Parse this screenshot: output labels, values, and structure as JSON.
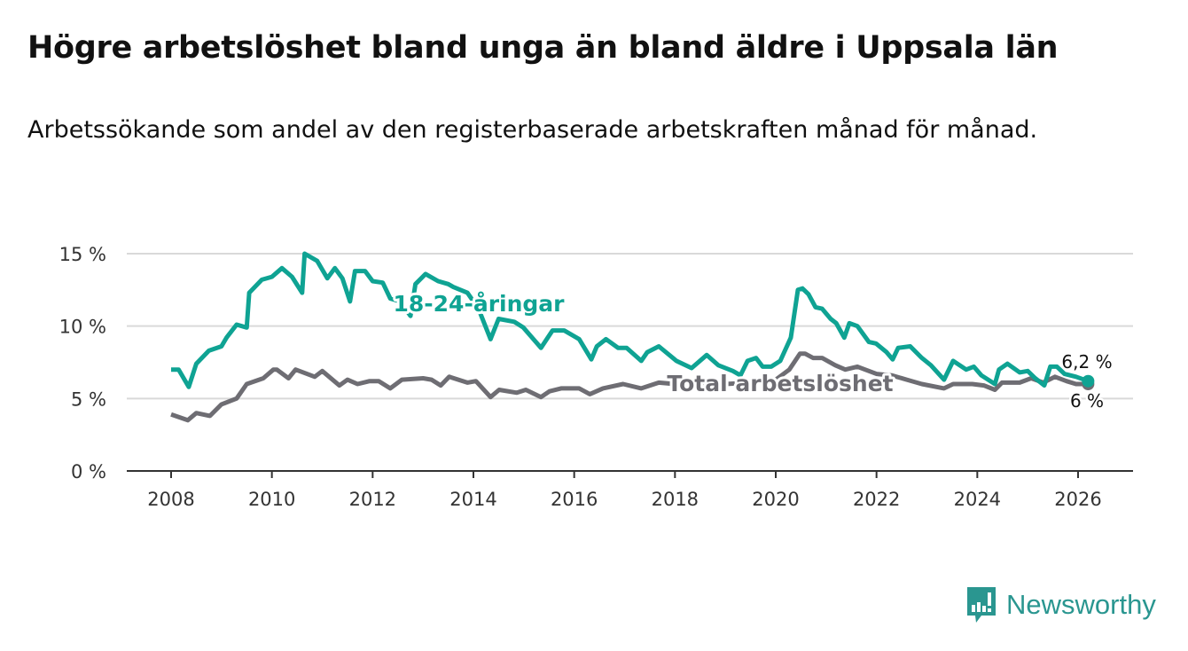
{
  "title": "Högre arbetslöshet bland unga än bland äldre i Uppsala län",
  "subtitle": "Arbetssökande som andel av den registerbaserade arbetskraften månad för månad.",
  "brand": {
    "name": "Newsworthy"
  },
  "chart_data": {
    "type": "line",
    "title": "Högre arbetslöshet bland unga än bland äldre i Uppsala län",
    "xlabel": "",
    "ylabel": "",
    "xlim": [
      2007.75,
      2027.0
    ],
    "ylim": [
      0,
      15
    ],
    "xticks": [
      2008,
      2010,
      2012,
      2014,
      2016,
      2018,
      2020,
      2022,
      2024,
      2026
    ],
    "xtick_labels": [
      "2008",
      "2010",
      "2012",
      "2014",
      "2016",
      "2018",
      "2020",
      "2022",
      "2024",
      "2026"
    ],
    "yticks": [
      0,
      5,
      10,
      15
    ],
    "ytick_labels": [
      "0 %",
      "5 %",
      "10 %",
      "15 %"
    ],
    "grid": true,
    "series": [
      {
        "name": "18-24-åringar",
        "label": "18-24-åringar",
        "color": "#0fa393",
        "end_label": "6,2 %",
        "x": [
          2008,
          2008.15,
          2008.35,
          2008.5,
          2008.75,
          2009,
          2009.1,
          2009.3,
          2009.5,
          2009.55,
          2009.8,
          2010,
          2010.2,
          2010.4,
          2010.6,
          2010.65,
          2010.9,
          2011.1,
          2011.25,
          2011.4,
          2011.55,
          2011.65,
          2011.85,
          2012,
          2012.2,
          2012.35,
          2012.55,
          2012.75,
          2012.85,
          2013.05,
          2013.3,
          2013.5,
          2013.6,
          2013.88,
          2014.1,
          2014.34,
          2014.5,
          2014.81,
          2014.99,
          2015.34,
          2015.57,
          2015.8,
          2016.1,
          2016.34,
          2016.45,
          2016.63,
          2016.87,
          2017.04,
          2017.33,
          2017.45,
          2017.68,
          2018.03,
          2018.33,
          2018.63,
          2018.86,
          2019.15,
          2019.3,
          2019.44,
          2019.61,
          2019.74,
          2019.91,
          2020.09,
          2020.3,
          2020.44,
          2020.53,
          2020.65,
          2020.79,
          2020.92,
          2021.09,
          2021.2,
          2021.36,
          2021.46,
          2021.62,
          2021.85,
          2021.99,
          2022.2,
          2022.32,
          2022.43,
          2022.67,
          2022.9,
          2023.08,
          2023.34,
          2023.52,
          2023.78,
          2023.93,
          2024.08,
          2024.35,
          2024.43,
          2024.6,
          2024.84,
          2025.0,
          2025.15,
          2025.33,
          2025.45,
          2025.58,
          2025.73,
          2025.96,
          2026.2
        ],
        "y": [
          7.0,
          7.0,
          5.8,
          7.4,
          8.3,
          8.6,
          9.2,
          10.1,
          9.9,
          12.3,
          13.2,
          13.4,
          14.0,
          13.4,
          12.3,
          15.0,
          14.5,
          13.3,
          14.0,
          13.3,
          11.7,
          13.8,
          13.8,
          13.1,
          13.0,
          11.9,
          11.7,
          10.7,
          12.9,
          13.6,
          13.1,
          12.9,
          12.7,
          12.3,
          11.2,
          9.1,
          10.5,
          10.3,
          9.9,
          8.5,
          9.7,
          9.7,
          9.1,
          7.7,
          8.6,
          9.1,
          8.5,
          8.5,
          7.6,
          8.2,
          8.6,
          7.6,
          7.1,
          8.0,
          7.3,
          6.9,
          6.6,
          7.6,
          7.8,
          7.2,
          7.2,
          7.6,
          9.2,
          12.5,
          12.6,
          12.2,
          11.3,
          11.2,
          10.5,
          10.2,
          9.2,
          10.2,
          10.0,
          8.9,
          8.8,
          8.2,
          7.7,
          8.5,
          8.6,
          7.8,
          7.3,
          6.3,
          7.6,
          7.0,
          7.2,
          6.6,
          6.0,
          7.0,
          7.4,
          6.8,
          6.9,
          6.4,
          5.9,
          7.2,
          7.2,
          6.7,
          6.5,
          6.2
        ]
      },
      {
        "name": "Total arbetslöshet",
        "label": "Total arbetslöshet",
        "color": "#6e6d73",
        "end_label": "6 %",
        "x": [
          2008,
          2008.33,
          2008.5,
          2008.77,
          2009,
          2009.3,
          2009.5,
          2009.83,
          2010.03,
          2010.1,
          2010.33,
          2010.47,
          2010.85,
          2011,
          2011.34,
          2011.5,
          2011.7,
          2011.94,
          2012.12,
          2012.35,
          2012.58,
          2013,
          2013.17,
          2013.35,
          2013.52,
          2013.88,
          2014.05,
          2014.34,
          2014.51,
          2014.86,
          2015.04,
          2015.34,
          2015.51,
          2015.74,
          2016.1,
          2016.31,
          2016.57,
          2016.97,
          2017.33,
          2017.68,
          2018,
          2018.5,
          2019,
          2019.5,
          2020,
          2020.27,
          2020.48,
          2020.58,
          2020.74,
          2020.92,
          2021.18,
          2021.38,
          2021.62,
          2022,
          2022.3,
          2022.6,
          2022.9,
          2023.34,
          2023.52,
          2023.9,
          2024.13,
          2024.35,
          2024.49,
          2024.84,
          2025.07,
          2025.31,
          2025.54,
          2025.77,
          2025.96,
          2026.2
        ],
        "y": [
          3.9,
          3.5,
          4.0,
          3.8,
          4.6,
          5.0,
          6.0,
          6.4,
          7.0,
          7.0,
          6.4,
          7.0,
          6.5,
          6.9,
          5.9,
          6.3,
          6.0,
          6.2,
          6.2,
          5.7,
          6.3,
          6.4,
          6.3,
          5.9,
          6.5,
          6.1,
          6.2,
          5.1,
          5.6,
          5.4,
          5.6,
          5.1,
          5.5,
          5.7,
          5.7,
          5.3,
          5.7,
          6.0,
          5.7,
          6.1,
          6.0,
          6.1,
          6.0,
          6.1,
          6.3,
          7.0,
          8.1,
          8.1,
          7.8,
          7.8,
          7.3,
          7.0,
          7.2,
          6.7,
          6.6,
          6.3,
          6.0,
          5.7,
          6.0,
          6.0,
          5.9,
          5.6,
          6.1,
          6.1,
          6.4,
          6.1,
          6.5,
          6.2,
          6.0,
          6.0
        ]
      }
    ]
  }
}
